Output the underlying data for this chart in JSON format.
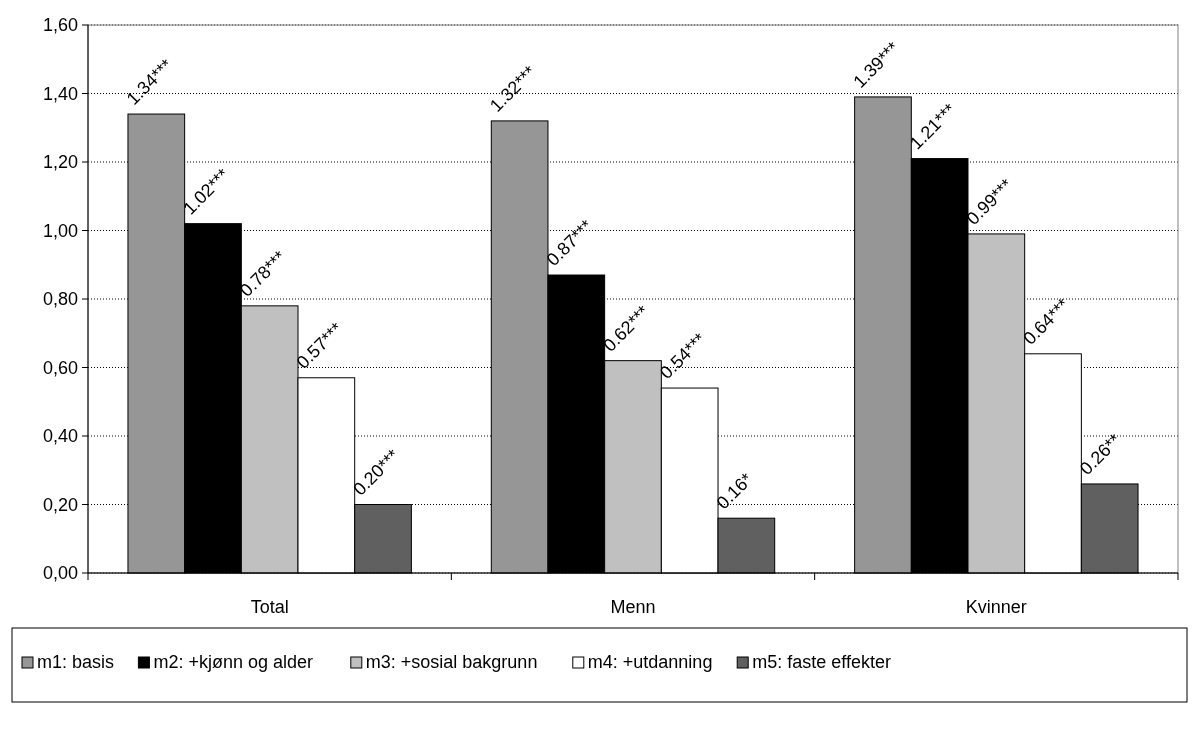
{
  "chart_data": {
    "type": "bar",
    "categories": [
      "Total",
      "Menn",
      "Kvinner"
    ],
    "series": [
      {
        "name": "m1: basis",
        "color": "#969696",
        "values": [
          1.34,
          1.32,
          1.39
        ],
        "value_labels": [
          "1.34***",
          "1.32***",
          "1.39***"
        ]
      },
      {
        "name": "m2: +kjønn og alder",
        "color": "#000000",
        "values": [
          1.02,
          0.87,
          1.21
        ],
        "value_labels": [
          "1.02***",
          "0.87***",
          "1.21***"
        ]
      },
      {
        "name": "m3: +sosial bakgrunn",
        "color": "#c0c0c0",
        "values": [
          0.78,
          0.62,
          0.99
        ],
        "value_labels": [
          "0.78***",
          "0.62***",
          "0.99***"
        ]
      },
      {
        "name": "m4: +utdanning",
        "color": "#ffffff",
        "values": [
          0.57,
          0.54,
          0.64
        ],
        "value_labels": [
          "0.57***",
          "0.54***",
          "0.64***"
        ]
      },
      {
        "name": "m5: faste effekter",
        "color": "#606060",
        "values": [
          0.2,
          0.16,
          0.26
        ],
        "value_labels": [
          "0.20***",
          "0.16*",
          "0.26**"
        ]
      }
    ],
    "ylim": [
      0,
      1.6
    ],
    "yticks": [
      {
        "value": 0,
        "label": "0,00"
      },
      {
        "value": 0.2,
        "label": "0,20"
      },
      {
        "value": 0.4,
        "label": "0,40"
      },
      {
        "value": 0.6,
        "label": "0,60"
      },
      {
        "value": 0.8,
        "label": "0,80"
      },
      {
        "value": 1.0,
        "label": "1,00"
      },
      {
        "value": 1.2,
        "label": "1,20"
      },
      {
        "value": 1.4,
        "label": "1,40"
      },
      {
        "value": 1.6,
        "label": "1,60"
      }
    ],
    "grid": "y",
    "legend": "bottom"
  }
}
